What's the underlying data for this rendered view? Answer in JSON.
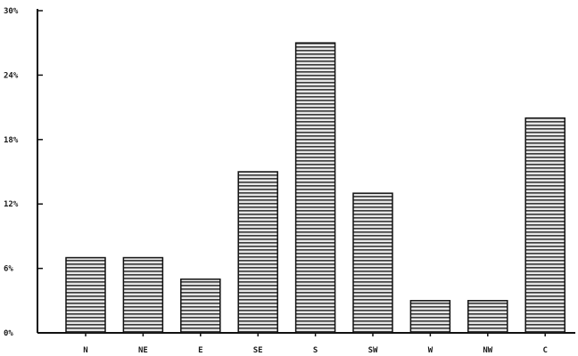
{
  "chart_data": {
    "type": "bar",
    "categories": [
      "N",
      "NE",
      "E",
      "SE",
      "S",
      "SW",
      "W",
      "NW",
      "C"
    ],
    "values": [
      7,
      7,
      5,
      15,
      27,
      13,
      3,
      3,
      20
    ],
    "yticks": [
      0,
      6,
      12,
      18,
      24,
      30
    ],
    "ytick_labels": [
      "0%",
      "6%",
      "12%",
      "18%",
      "24%",
      "30%"
    ],
    "ylim": [
      0,
      30
    ],
    "grid": false,
    "colors": {
      "axis": "#111111",
      "bar_fill": "#e6e6e6",
      "bar_stripe": "#3a3a3a",
      "bar_edge": "#111111"
    }
  }
}
